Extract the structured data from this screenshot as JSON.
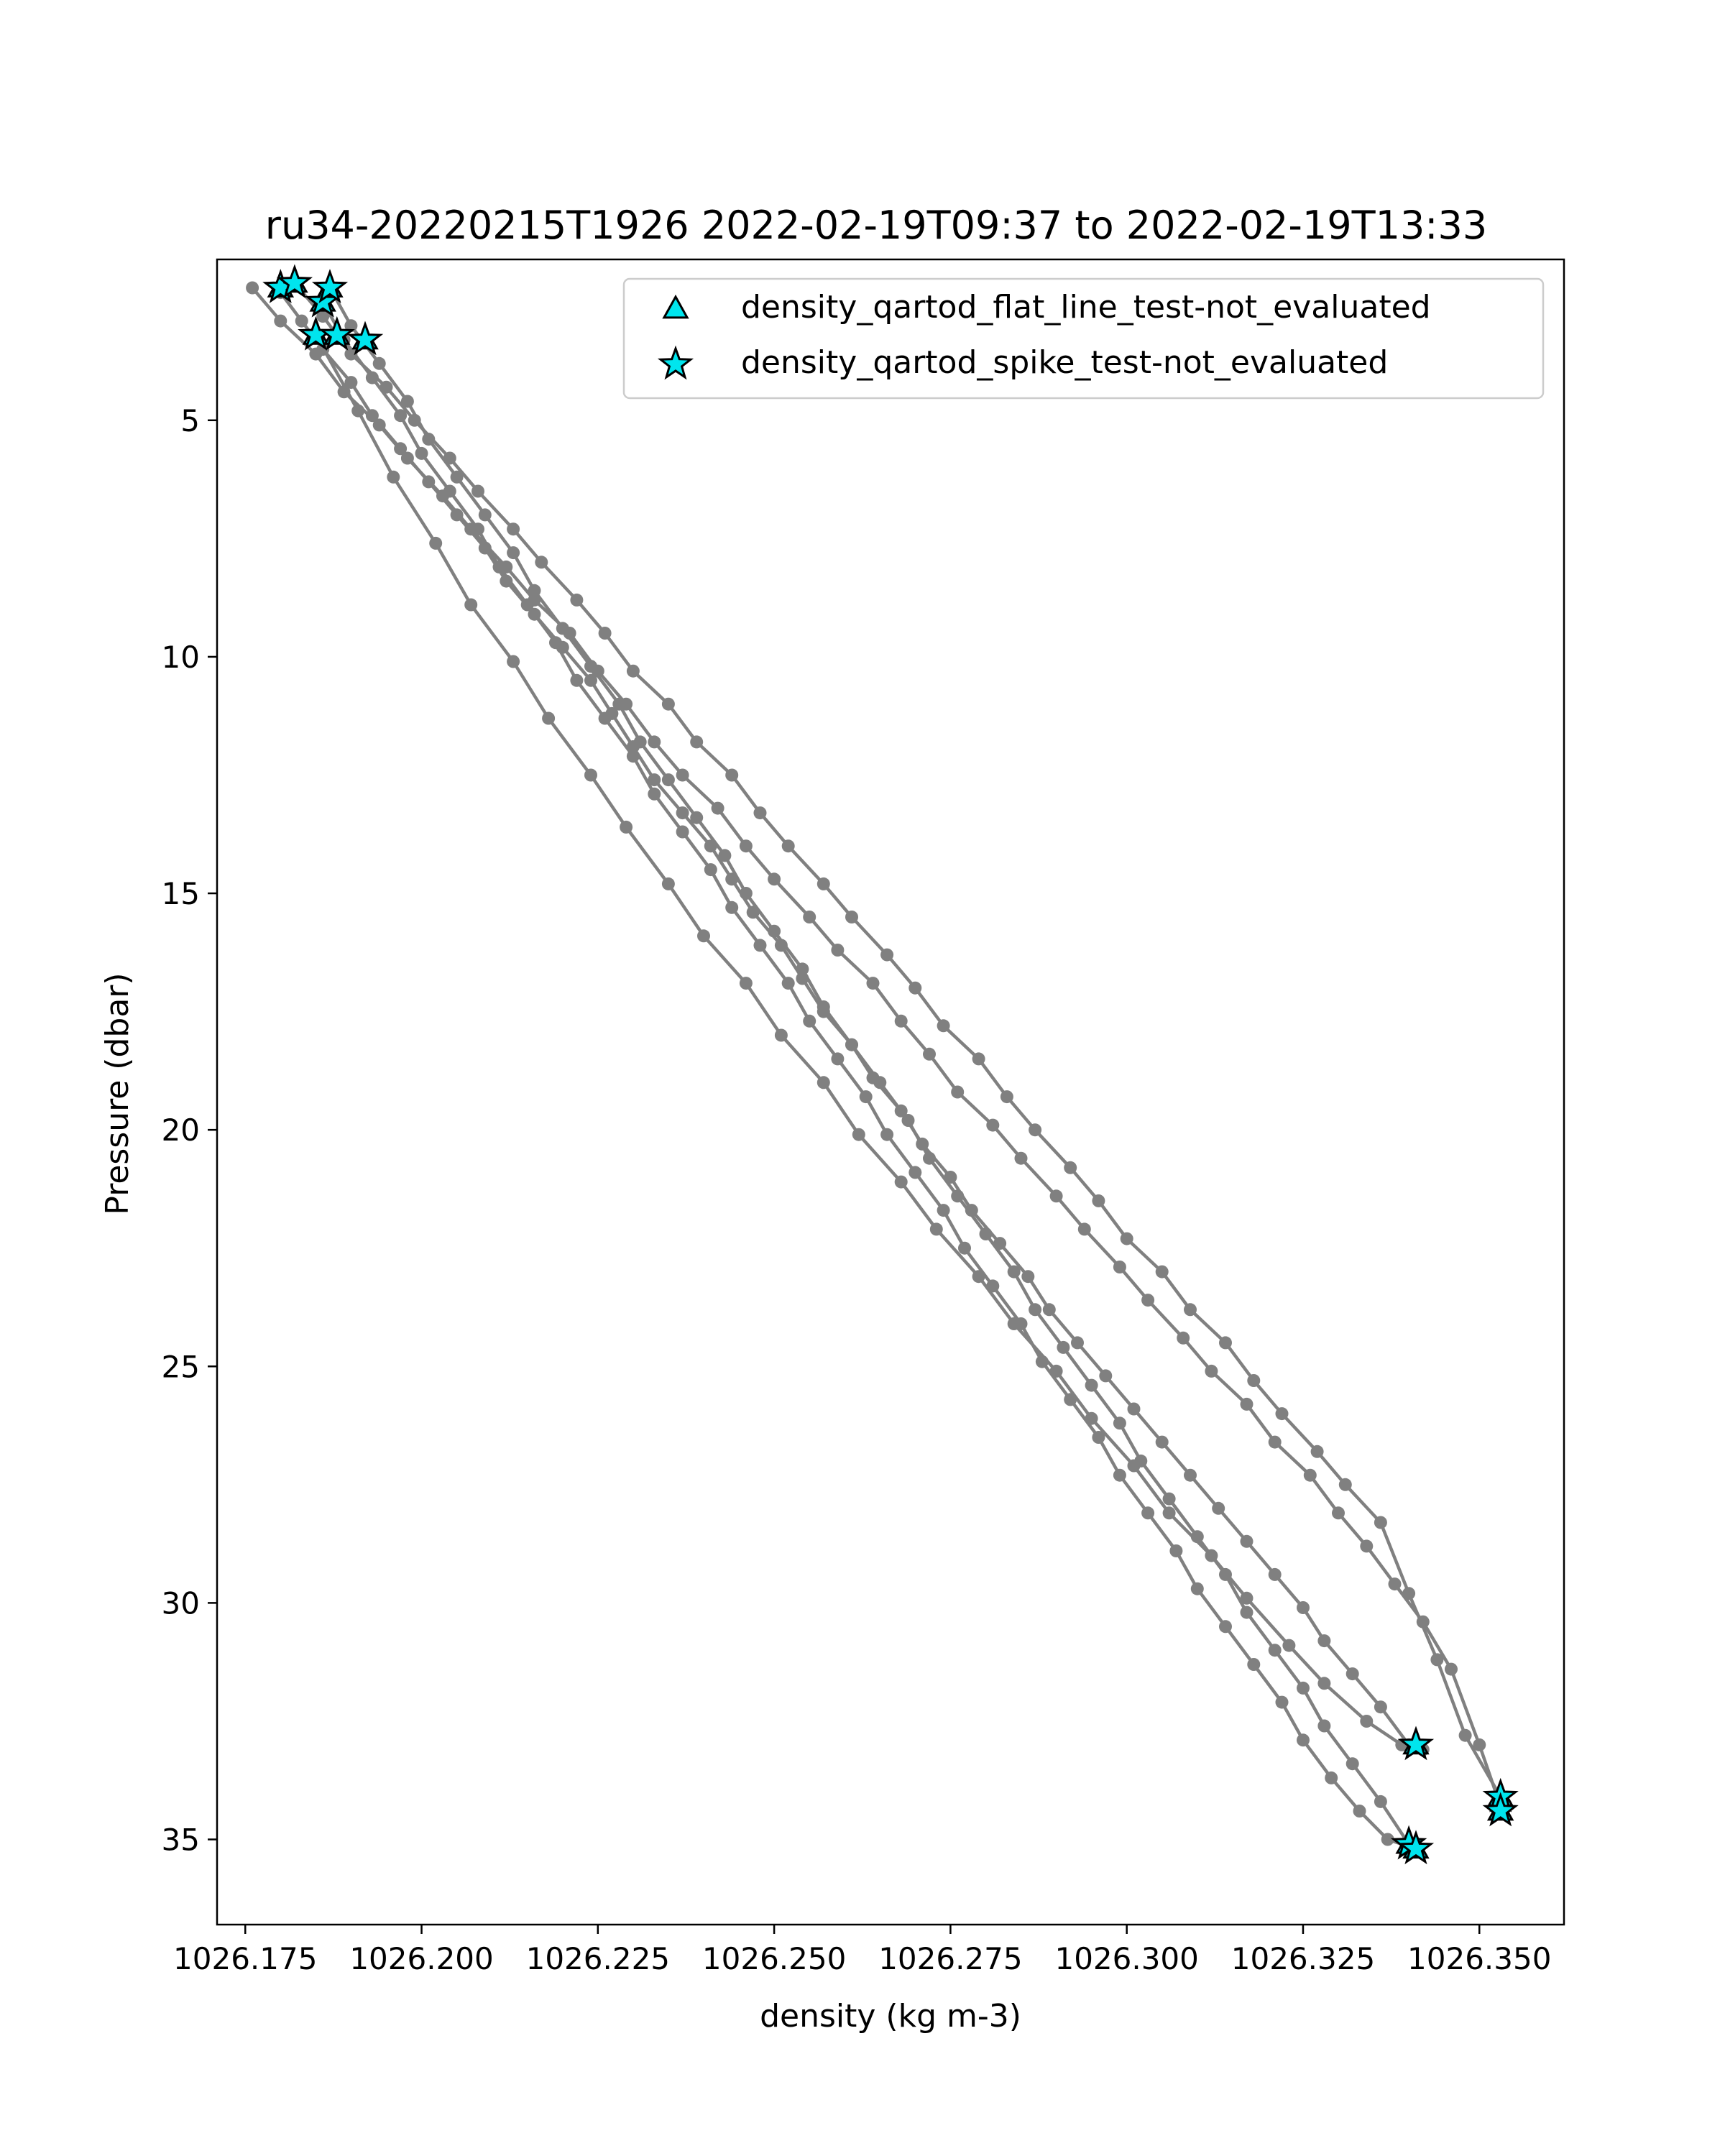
{
  "chart_data": {
    "type": "line",
    "title": "ru34-20220215T1926 2022-02-19T09:37 to 2022-02-19T13:33",
    "xlabel": "density (kg m-3)",
    "ylabel": "Pressure (dbar)",
    "xlim": [
      1026.171,
      1026.362
    ],
    "ylim": [
      36.8,
      1.6
    ],
    "y_inverted": true,
    "grid": false,
    "xticks": [
      1026.175,
      1026.2,
      1026.225,
      1026.25,
      1026.275,
      1026.3,
      1026.325,
      1026.35
    ],
    "xtick_labels": [
      "1026.175",
      "1026.200",
      "1026.225",
      "1026.250",
      "1026.275",
      "1026.300",
      "1026.325",
      "1026.350"
    ],
    "yticks": [
      5,
      10,
      15,
      20,
      25,
      30,
      35
    ],
    "ytick_labels": [
      "5",
      "10",
      "15",
      "20",
      "25",
      "30",
      "35"
    ],
    "line_color": "#808080",
    "flag_color": "#00e5ee",
    "legend": {
      "placement": "upper right",
      "entries": [
        {
          "marker": "triangle",
          "label": "density_qartod_flat_line_test-not_evaluated"
        },
        {
          "marker": "star",
          "label": "density_qartod_spike_test-not_evaluated"
        }
      ]
    },
    "series": [
      {
        "x": [
          1026.18,
          1026.183,
          1026.186,
          1026.19,
          1026.193,
          1026.197,
          1026.201,
          1026.205,
          1026.209,
          1026.212,
          1026.216,
          1026.22,
          1026.224,
          1026.227,
          1026.23,
          1026.233,
          1026.237,
          1026.241,
          1026.244,
          1026.247,
          1026.251,
          1026.254,
          1026.257,
          1026.261,
          1026.264,
          1026.268,
          1026.271,
          1026.275,
          1026.278,
          1026.282,
          1026.286,
          1026.289,
          1026.293,
          1026.297,
          1026.301,
          1026.305,
          1026.309,
          1026.313,
          1026.317,
          1026.321,
          1026.325,
          1026.328,
          1026.332,
          1026.336,
          1026.34
        ],
        "y": [
          2.3,
          2.9,
          3.5,
          4.2,
          4.9,
          5.6,
          6.3,
          7.0,
          7.7,
          8.4,
          9.1,
          9.8,
          10.5,
          11.2,
          11.9,
          12.6,
          13.3,
          14.0,
          14.7,
          15.4,
          16.1,
          16.8,
          17.5,
          18.2,
          18.9,
          19.6,
          20.3,
          21.0,
          21.7,
          22.4,
          23.1,
          23.8,
          24.5,
          25.2,
          25.9,
          26.6,
          27.3,
          28.0,
          28.7,
          29.4,
          30.1,
          30.8,
          31.5,
          32.2,
          33.0
        ]
      },
      {
        "x": [
          1026.176,
          1026.18,
          1026.185,
          1026.189,
          1026.194,
          1026.198,
          1026.203,
          1026.207,
          1026.212,
          1026.216,
          1026.221,
          1026.225,
          1026.229,
          1026.233,
          1026.237,
          1026.242,
          1026.246,
          1026.25,
          1026.255,
          1026.259,
          1026.264,
          1026.268,
          1026.272,
          1026.276,
          1026.281,
          1026.285,
          1026.29,
          1026.294,
          1026.299,
          1026.303,
          1026.308,
          1026.312,
          1026.317,
          1026.321,
          1026.326,
          1026.33,
          1026.334,
          1026.338,
          1026.342,
          1026.346,
          1026.35,
          1026.353
        ],
        "y": [
          2.2,
          2.9,
          3.6,
          4.4,
          5.1,
          5.8,
          6.6,
          7.3,
          8.1,
          8.8,
          9.5,
          10.3,
          11.0,
          11.8,
          12.5,
          13.2,
          14.0,
          14.7,
          15.5,
          16.2,
          16.9,
          17.7,
          18.4,
          19.2,
          19.9,
          20.6,
          21.4,
          22.1,
          22.9,
          23.6,
          24.4,
          25.1,
          25.8,
          26.6,
          27.3,
          28.1,
          28.8,
          29.6,
          30.4,
          31.4,
          33.0,
          34.3
        ]
      },
      {
        "x": [
          1026.182,
          1026.186,
          1026.19,
          1026.195,
          1026.199,
          1026.204,
          1026.208,
          1026.213,
          1026.217,
          1026.222,
          1026.226,
          1026.23,
          1026.235,
          1026.239,
          1026.244,
          1026.248,
          1026.252,
          1026.257,
          1026.261,
          1026.266,
          1026.27,
          1026.274,
          1026.279,
          1026.283,
          1026.287,
          1026.292,
          1026.296,
          1026.3,
          1026.305,
          1026.309,
          1026.314,
          1026.318,
          1026.322,
          1026.327,
          1026.331,
          1026.336,
          1026.34,
          1026.344,
          1026.348,
          1026.353
        ],
        "y": [
          2.1,
          2.8,
          3.6,
          4.3,
          5.0,
          5.8,
          6.5,
          7.3,
          8.0,
          8.8,
          9.5,
          10.3,
          11.0,
          11.8,
          12.5,
          13.3,
          14.0,
          14.8,
          15.5,
          16.3,
          17.0,
          17.8,
          18.5,
          19.3,
          20.0,
          20.8,
          21.5,
          22.3,
          23.0,
          23.8,
          24.5,
          25.3,
          26.0,
          26.8,
          27.5,
          28.3,
          29.8,
          31.2,
          32.8,
          34.1
        ]
      },
      {
        "x": [
          1026.187,
          1026.19,
          1026.194,
          1026.198,
          1026.201,
          1026.205,
          1026.209,
          1026.213,
          1026.216,
          1026.22,
          1026.224,
          1026.228,
          1026.231,
          1026.235,
          1026.239,
          1026.243,
          1026.246,
          1026.25,
          1026.254,
          1026.257,
          1026.261,
          1026.265,
          1026.269,
          1026.272,
          1026.276,
          1026.28,
          1026.284,
          1026.287,
          1026.291,
          1026.295,
          1026.299,
          1026.302,
          1026.306,
          1026.31,
          1026.314,
          1026.317,
          1026.321,
          1026.325,
          1026.328,
          1026.332,
          1026.336,
          1026.34
        ],
        "y": [
          2.2,
          3.0,
          3.8,
          4.6,
          5.4,
          6.2,
          7.0,
          7.8,
          8.6,
          9.4,
          10.2,
          11.0,
          11.8,
          12.6,
          13.4,
          14.2,
          15.0,
          15.8,
          16.6,
          17.4,
          18.2,
          19.0,
          19.8,
          20.6,
          21.4,
          22.2,
          23.0,
          23.8,
          24.6,
          25.4,
          26.2,
          27.0,
          27.8,
          28.6,
          29.4,
          30.2,
          31.0,
          31.8,
          32.6,
          33.4,
          34.2,
          35.1
        ]
      },
      {
        "x": [
          1026.186,
          1026.189,
          1026.193,
          1026.197,
          1026.2,
          1026.204,
          1026.208,
          1026.211,
          1026.215,
          1026.219,
          1026.222,
          1026.226,
          1026.23,
          1026.233,
          1026.237,
          1026.241,
          1026.244,
          1026.248,
          1026.252,
          1026.255,
          1026.259,
          1026.263,
          1026.266,
          1026.27,
          1026.274,
          1026.277,
          1026.281,
          1026.285,
          1026.288,
          1026.292,
          1026.296,
          1026.299,
          1026.303,
          1026.307,
          1026.31,
          1026.314,
          1026.318,
          1026.322,
          1026.325,
          1026.329,
          1026.333,
          1026.337,
          1026.341
        ],
        "y": [
          2.5,
          3.3,
          4.1,
          4.9,
          5.7,
          6.5,
          7.3,
          8.1,
          8.9,
          9.7,
          10.5,
          11.3,
          12.1,
          12.9,
          13.7,
          14.5,
          15.3,
          16.1,
          16.9,
          17.7,
          18.5,
          19.3,
          20.1,
          20.9,
          21.7,
          22.5,
          23.3,
          24.1,
          24.9,
          25.7,
          26.5,
          27.3,
          28.1,
          28.9,
          29.7,
          30.5,
          31.3,
          32.1,
          32.9,
          33.7,
          34.4,
          35.0,
          35.2
        ]
      },
      {
        "x": [
          1026.185,
          1026.191,
          1026.196,
          1026.202,
          1026.207,
          1026.213,
          1026.218,
          1026.224,
          1026.229,
          1026.235,
          1026.24,
          1026.246,
          1026.251,
          1026.257,
          1026.262,
          1026.268,
          1026.273,
          1026.279,
          1026.284,
          1026.29,
          1026.295,
          1026.301,
          1026.306,
          1026.312,
          1026.317,
          1026.323,
          1026.328,
          1026.334,
          1026.339,
          1026.342
        ],
        "y": [
          3.2,
          4.8,
          6.2,
          7.6,
          8.9,
          10.1,
          11.3,
          12.5,
          13.6,
          14.8,
          15.9,
          16.9,
          18.0,
          19.0,
          20.1,
          21.1,
          22.1,
          23.1,
          24.1,
          25.1,
          26.1,
          27.1,
          28.1,
          29.0,
          29.9,
          30.9,
          31.7,
          32.5,
          33.0,
          33.1
        ]
      }
    ],
    "flagged_points": {
      "flat_line": {
        "x": [
          1026.18,
          1026.182,
          1026.186,
          1026.187,
          1026.185,
          1026.188,
          1026.192,
          1026.341,
          1026.353,
          1026.353,
          1026.34,
          1026.341
        ],
        "y": [
          2.2,
          2.1,
          2.5,
          2.2,
          3.2,
          3.2,
          3.3,
          33.0,
          34.1,
          34.4,
          35.1,
          35.2
        ]
      },
      "spike": {
        "x": [
          1026.18,
          1026.182,
          1026.186,
          1026.187,
          1026.185,
          1026.188,
          1026.192,
          1026.341,
          1026.353,
          1026.353,
          1026.34,
          1026.341
        ],
        "y": [
          2.2,
          2.1,
          2.5,
          2.2,
          3.2,
          3.2,
          3.3,
          33.0,
          34.1,
          34.4,
          35.1,
          35.2
        ]
      }
    }
  }
}
